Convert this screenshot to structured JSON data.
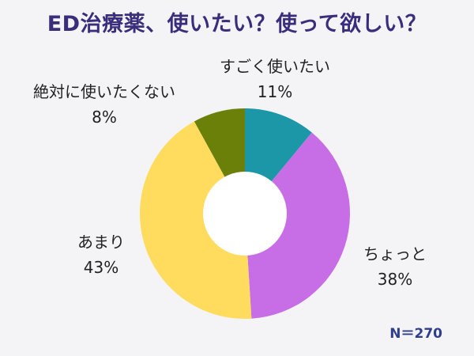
{
  "title": "ED治療薬、使いたい？使って欲しい？",
  "note": "N＝270",
  "colors": {
    "title": "#3a2e7c",
    "note": "#2f3e8c",
    "background": "#f4f4f7",
    "hole": "#ffffff"
  },
  "chart_data": {
    "type": "pie",
    "donut": true,
    "title": "ED治療薬、使いたい？使って欲しい？",
    "slices": [
      {
        "label": "すごく使いたい",
        "value": 11,
        "display": "11%",
        "color": "#1b97a8"
      },
      {
        "label": "ちょっと",
        "value": 38,
        "display": "38%",
        "color": "#c76ee6"
      },
      {
        "label": "あまり",
        "value": 43,
        "display": "43%",
        "color": "#ffdc5e"
      },
      {
        "label": "絶対に使いたくない",
        "value": 8,
        "display": "8%",
        "color": "#6b8009"
      }
    ]
  }
}
